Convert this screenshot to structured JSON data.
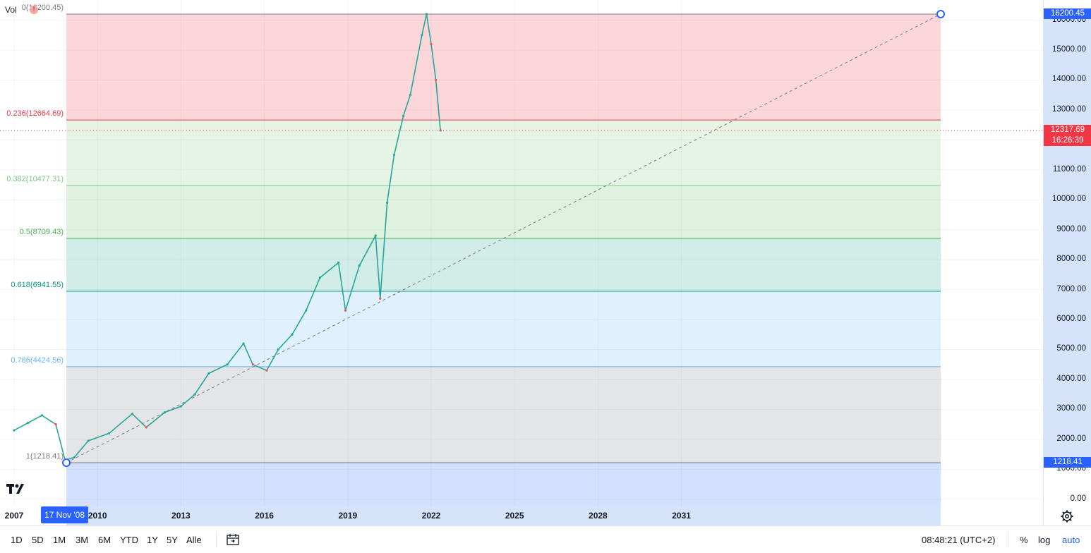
{
  "volume_label": "Vol",
  "volume_value": "0",
  "top_left_overlay": "0(16200.45)",
  "fib_levels": [
    {
      "ratio": 0,
      "label": "0(16200.45)",
      "price": 16200.45,
      "line": "#787b86",
      "fill": "rgba(242,54,69,0.20)",
      "text": "#787b86"
    },
    {
      "ratio": 0.236,
      "label": "0.236(12664.69)",
      "price": 12664.69,
      "line": "#f23645",
      "fill": "rgba(76,175,80,0.14)",
      "text": "#f23645"
    },
    {
      "ratio": 0.382,
      "label": "0.382(10477.31)",
      "price": 10477.31,
      "line": "#81c784",
      "fill": "rgba(76,175,80,0.18)",
      "text": "#81c784"
    },
    {
      "ratio": 0.5,
      "label": "0.5(8709.43)",
      "price": 8709.43,
      "line": "#4caf50",
      "fill": "rgba(8,153,129,0.18)",
      "text": "#4caf50"
    },
    {
      "ratio": 0.618,
      "label": "0.618(6941.55)",
      "price": 6941.55,
      "line": "#089981",
      "fill": "rgba(100,181,246,0.20)",
      "text": "#089981"
    },
    {
      "ratio": 0.786,
      "label": "0.786(4424.56)",
      "price": 4424.56,
      "line": "#64b5f6",
      "fill": "rgba(120,123,134,0.20)",
      "text": "#64b5f6"
    },
    {
      "ratio": 1,
      "label": "1(1218.41)",
      "price": 1218.41,
      "line": "#787b86",
      "fill": "rgba(41,98,255,0.20)",
      "text": "#787b86"
    }
  ],
  "price_axis": {
    "ticks": [
      "16000.00",
      "15000.00",
      "14000.00",
      "13000.00",
      "12000.00",
      "11000.00",
      "10000.00",
      "9000.00",
      "8000.00",
      "7000.00",
      "6000.00",
      "5000.00",
      "4000.00",
      "3000.00",
      "2000.00",
      "1000.00",
      "0.00"
    ],
    "tick_values": [
      16000,
      15000,
      14000,
      13000,
      12000,
      11000,
      10000,
      9000,
      8000,
      7000,
      6000,
      5000,
      4000,
      3000,
      2000,
      1000,
      0
    ],
    "high_tag": "16200.45",
    "low_tag": "1218.41",
    "last_price": "12317.69",
    "countdown": "16:26:39",
    "accent_blue": "#2962ff",
    "accent_red": "#f23645"
  },
  "time_axis": {
    "labels": [
      "2007",
      "2010",
      "2013",
      "2016",
      "2019",
      "2022",
      "2025",
      "2028",
      "2031"
    ],
    "label_years": [
      2007,
      2010,
      2013,
      2016,
      2019,
      2022,
      2025,
      2028,
      2031
    ],
    "selected_date": "17 Nov '08"
  },
  "bottom_bar": {
    "ranges": [
      "1D",
      "5D",
      "1M",
      "3M",
      "6M",
      "YTD",
      "1Y",
      "5Y",
      "Alle"
    ],
    "time": "08:48:21 (UTC+2)",
    "percent": "%",
    "log": "log",
    "auto": "auto"
  },
  "chart_data": {
    "type": "line",
    "title": "",
    "xlabel": "",
    "ylabel": "",
    "ylim": [
      0,
      16200.45
    ],
    "x_range": [
      "2007",
      "2034"
    ],
    "series": [
      {
        "x": [
          "2007-01",
          "2007-07",
          "2008-01",
          "2008-07",
          "2008-11",
          "2009-03",
          "2009-09",
          "2010-06",
          "2011-04",
          "2011-10",
          "2012-06",
          "2013-01",
          "2013-07",
          "2014-01",
          "2014-09",
          "2015-04",
          "2015-08",
          "2016-02",
          "2016-07",
          "2017-01",
          "2017-07",
          "2018-01",
          "2018-09",
          "2018-12",
          "2019-06",
          "2020-01",
          "2020-03",
          "2020-06",
          "2020-09",
          "2021-01",
          "2021-04",
          "2021-09",
          "2021-11",
          "2022-01",
          "2022-03",
          "2022-05"
        ],
        "y": [
          2300,
          2550,
          2800,
          2500,
          1300,
          1400,
          1950,
          2200,
          2850,
          2400,
          2900,
          3100,
          3500,
          4200,
          4500,
          5200,
          4500,
          4300,
          5000,
          5500,
          6300,
          7400,
          7900,
          6300,
          7800,
          8800,
          6700,
          9900,
          11500,
          12800,
          13500,
          15500,
          16200,
          15200,
          14000,
          12317.69
        ]
      }
    ],
    "fib_anchor_low": {
      "date": "2008-11-17",
      "price": 1218.41
    },
    "fib_anchor_high": {
      "date": "2034-01-01",
      "price": 16200.45
    },
    "grid": true,
    "legend": "none"
  }
}
